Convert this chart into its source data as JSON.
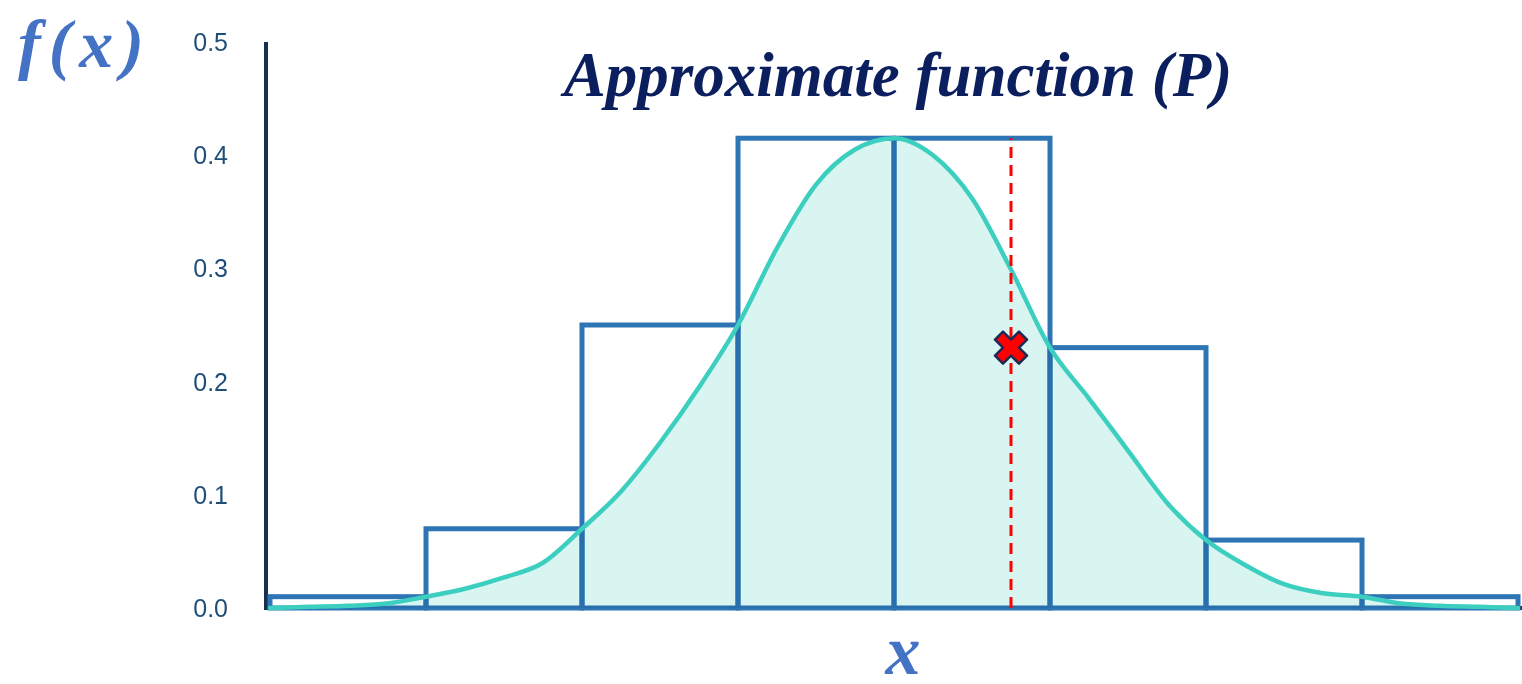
{
  "chart_data": [
    {
      "type": "bar",
      "title": "Approximate function (P)",
      "xlabel": "x",
      "ylabel": "f(x)",
      "categories": [
        null,
        null,
        null,
        null,
        null,
        null,
        null,
        null
      ],
      "values": [
        0.01,
        0.07,
        0.25,
        0.415,
        0.415,
        0.23,
        0.06,
        0.01
      ],
      "color": "#2e75b6",
      "ylim": [
        0,
        0.5
      ],
      "yticks": [
        {
          "value": 0,
          "label": "0.0"
        },
        {
          "value": 0.1,
          "label": "0.1"
        },
        {
          "value": 0.2,
          "label": "0.2"
        },
        {
          "value": 0.3,
          "label": "0.3"
        },
        {
          "value": 0.4,
          "label": "0.4"
        },
        {
          "value": 0.5,
          "label": "0.5"
        }
      ]
    },
    {
      "type": "area",
      "categories": [
        null,
        null,
        null,
        null,
        null,
        null,
        null,
        null,
        null,
        null,
        null,
        null,
        null,
        null,
        null,
        null,
        null,
        null,
        null,
        null,
        null,
        null,
        null,
        null,
        null,
        null,
        null,
        null,
        null,
        null,
        null,
        null,
        null
      ],
      "ylim": [
        0,
        0.5
      ],
      "series": [
        {
          "type": "area",
          "color": "#3ccfbf",
          "values": [
            0,
            0.001,
            0.002,
            0.004,
            0.01,
            0.017,
            0.027,
            0.04,
            0.07,
            0.103,
            0.146,
            0.195,
            0.25,
            0.318,
            0.374,
            0.405,
            0.415,
            0.4,
            0.362,
            0.299,
            0.23,
            0.185,
            0.139,
            0.093,
            0.06,
            0.038,
            0.021,
            0.013,
            0.01,
            0.004,
            0.002,
            0.001,
            0
          ]
        },
        {
          "type": "scatter",
          "color": "#ff0000",
          "marker": "cross",
          "line_style": "dashed",
          "values": [
            null,
            null,
            null,
            null,
            null,
            null,
            null,
            null,
            null,
            null,
            null,
            null,
            null,
            null,
            null,
            null,
            null,
            null,
            null,
            0.23,
            null,
            null,
            null,
            null,
            null,
            null,
            null,
            null,
            null,
            null,
            null,
            null,
            null
          ],
          "errors": [
            null,
            null,
            null,
            null,
            null,
            null,
            null,
            null,
            null,
            null,
            null,
            null,
            null,
            null,
            null,
            null,
            null,
            null,
            null,
            [
              0,
              0.415
            ],
            null,
            null,
            null,
            null,
            null,
            null,
            null,
            null,
            null,
            null,
            null,
            null,
            null
          ]
        }
      ]
    }
  ]
}
